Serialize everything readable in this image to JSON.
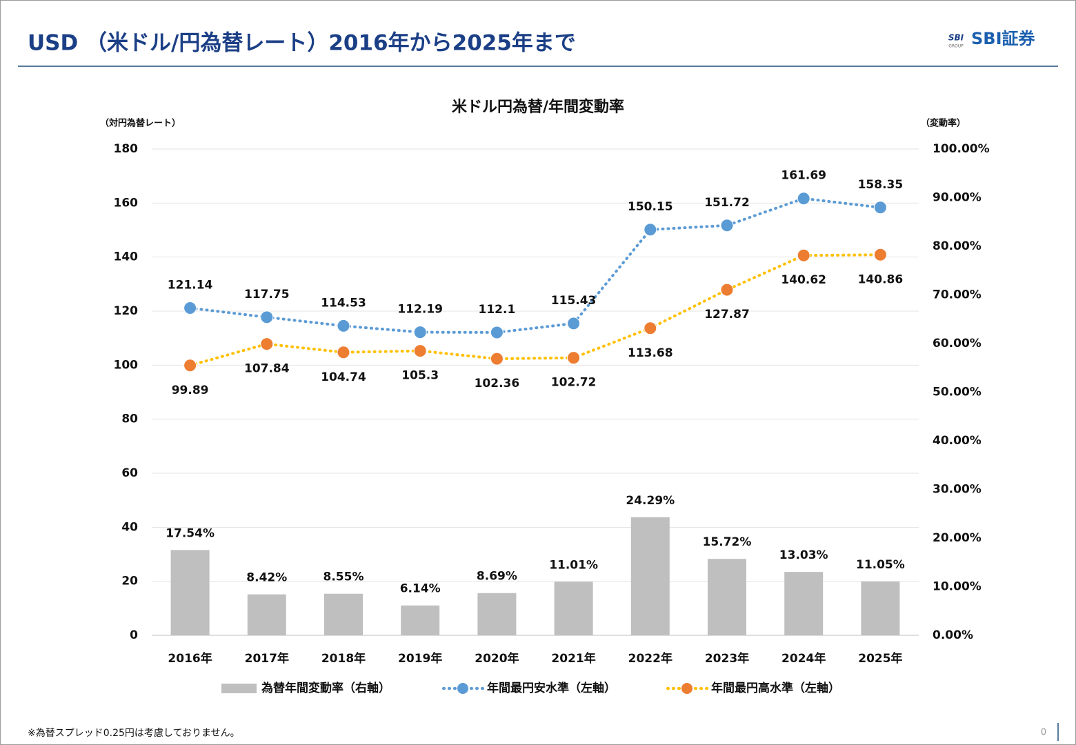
{
  "header": {
    "title": "USD （米ドル/円為替レート）2016年から2025年まで",
    "logo_mark": "SBI",
    "logo_sub": "GROUP",
    "logo": "SBI証券"
  },
  "chart_data": {
    "type": "combo",
    "title": "米ドル円為替/年間変動率",
    "y_label": "（対円為替レート）",
    "y2_label": "（変動率）",
    "categories": [
      "2016年",
      "2017年",
      "2018年",
      "2019年",
      "2020年",
      "2021年",
      "2022年",
      "2023年",
      "2024年",
      "2025年"
    ],
    "ylim": [
      0,
      180
    ],
    "yticks": [
      0,
      20,
      40,
      60,
      80,
      100,
      120,
      140,
      160,
      180
    ],
    "y2lim": [
      0,
      100
    ],
    "y2ticks": [
      {
        "value": 0,
        "label": "0.00%"
      },
      {
        "value": 10,
        "label": "10.00%"
      },
      {
        "value": 20,
        "label": "20.00%"
      },
      {
        "value": 30,
        "label": "30.00%"
      },
      {
        "value": 40,
        "label": "40.00%"
      },
      {
        "value": 50,
        "label": "50.00%"
      },
      {
        "value": 60,
        "label": "60.00%"
      },
      {
        "value": 70,
        "label": "70.00%"
      },
      {
        "value": 80,
        "label": "80.00%"
      },
      {
        "value": 90,
        "label": "90.00%"
      },
      {
        "value": 100,
        "label": "100.00%"
      }
    ],
    "grid": true,
    "legend": "bottom",
    "series": [
      {
        "name": "為替年間変動率（右軸）",
        "type": "bar",
        "axis": "y2",
        "color": "#bfbfbf",
        "values": [
          17.54,
          8.42,
          8.55,
          6.14,
          8.69,
          11.01,
          24.29,
          15.72,
          13.03,
          11.05
        ],
        "value_labels": [
          "17.54%",
          "8.42%",
          "8.55%",
          "6.14%",
          "8.69%",
          "11.01%",
          "24.29%",
          "15.72%",
          "13.03%",
          "11.05%"
        ]
      },
      {
        "name": "年間最円安水準（左軸）",
        "type": "line",
        "color": "#5b9bd5",
        "line_color": "#5b9bd5",
        "values": [
          121.14,
          117.75,
          114.53,
          112.19,
          112.1,
          115.43,
          150.15,
          151.72,
          161.69,
          158.35
        ]
      },
      {
        "name": "年間最円高水準（左軸）",
        "type": "line",
        "color": "#ed7d31",
        "line_color": "#ffc000",
        "values": [
          99.89,
          107.84,
          104.74,
          105.3,
          102.36,
          102.72,
          113.68,
          127.87,
          140.62,
          140.86
        ]
      }
    ]
  },
  "footer": {
    "note": "※為替スプレッド0.25円は考慮しておりません。",
    "page": "0"
  }
}
